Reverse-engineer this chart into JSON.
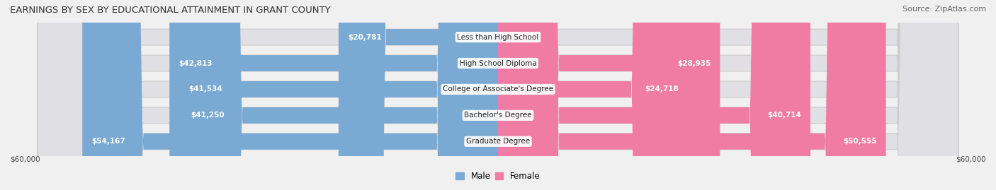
{
  "title": "EARNINGS BY SEX BY EDUCATIONAL ATTAINMENT IN GRANT COUNTY",
  "source": "Source: ZipAtlas.com",
  "categories": [
    "Less than High School",
    "High School Diploma",
    "College or Associate's Degree",
    "Bachelor's Degree",
    "Graduate Degree"
  ],
  "male_values": [
    20781,
    42813,
    41534,
    41250,
    54167
  ],
  "female_values": [
    0,
    28935,
    24718,
    40714,
    50555
  ],
  "max_value": 60000,
  "male_color": "#7aaad4",
  "female_color": "#f07ca4",
  "bar_bg_color": "#e0e0e4",
  "bar_bg_border": "#cccccc",
  "background_color": "#f0f0f0",
  "label_white": "#ffffff",
  "label_dark": "#444444",
  "title_fontsize": 9.5,
  "source_fontsize": 8,
  "bar_label_fontsize": 7.5,
  "cat_label_fontsize": 7.5,
  "axis_label_fontsize": 7.5,
  "legend_fontsize": 8.5,
  "bar_height": 0.62,
  "xlabel_left": "$60,000",
  "xlabel_right": "$60,000",
  "legend_male": "Male",
  "legend_female": "Female"
}
